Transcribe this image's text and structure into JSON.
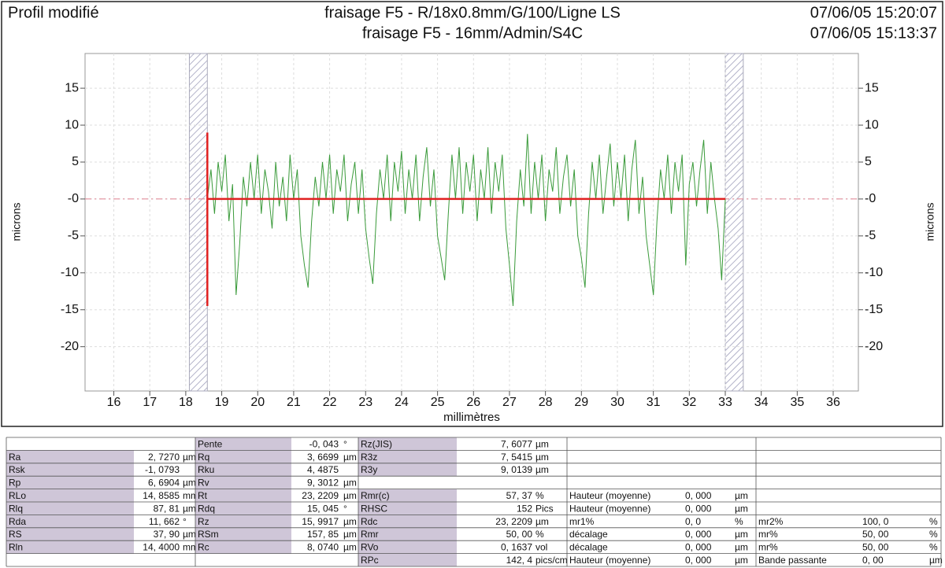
{
  "chart_data": {
    "type": "line",
    "title": "Profil modifié",
    "subtitles": [
      "fraisage F5 - R/18x0.8mm/G/100/Ligne LS",
      "fraisage F5 - 16mm/Admin/S4C"
    ],
    "dates": [
      "07/06/05 15:20:07",
      "07/06/05 15:13:37"
    ],
    "xlabel": "millimètres",
    "ylabel": "microns",
    "xlim": [
      15.2,
      36.7
    ],
    "ylim": [
      -26,
      19.7
    ],
    "xticks": [
      16,
      17,
      18,
      19,
      20,
      21,
      22,
      23,
      24,
      25,
      26,
      27,
      28,
      29,
      30,
      31,
      32,
      33,
      34,
      35,
      36
    ],
    "yticks": [
      15,
      10,
      5,
      {
        "value": 0,
        "label": "-0"
      },
      -5,
      -10,
      -15,
      -20
    ],
    "grid": true,
    "reference_line": 0,
    "mean_line": {
      "x": [
        18.6,
        33.0
      ],
      "y": 0,
      "color": "#e02020"
    },
    "cursor": {
      "x": 18.6,
      "y": [
        -14.5,
        9
      ],
      "color": "#e02020"
    },
    "excluded": [
      [
        18.1,
        18.6
      ],
      [
        33.0,
        33.5
      ]
    ],
    "series": [
      {
        "color": "#3a9a3a",
        "x": [
          18.6,
          18.7,
          18.8,
          18.9,
          19.0,
          19.1,
          19.2,
          19.3,
          19.4,
          19.5,
          19.6,
          19.7,
          19.8,
          19.9,
          20.0,
          20.1,
          20.2,
          20.3,
          20.4,
          20.5,
          20.6,
          20.7,
          20.8,
          20.9,
          21.0,
          21.1,
          21.2,
          21.3,
          21.4,
          21.5,
          21.6,
          21.7,
          21.8,
          21.9,
          22.0,
          22.1,
          22.2,
          22.3,
          22.4,
          22.5,
          22.6,
          22.7,
          22.8,
          22.9,
          23.0,
          23.1,
          23.2,
          23.3,
          23.4,
          23.5,
          23.6,
          23.7,
          23.8,
          23.9,
          24.0,
          24.1,
          24.2,
          24.3,
          24.4,
          24.5,
          24.6,
          24.7,
          24.8,
          24.9,
          25.0,
          25.1,
          25.2,
          25.3,
          25.4,
          25.5,
          25.6,
          25.7,
          25.8,
          25.9,
          26.0,
          26.1,
          26.2,
          26.3,
          26.4,
          26.5,
          26.6,
          26.7,
          26.8,
          26.9,
          27.0,
          27.1,
          27.2,
          27.3,
          27.4,
          27.5,
          27.6,
          27.7,
          27.8,
          27.9,
          28.0,
          28.1,
          28.2,
          28.3,
          28.4,
          28.5,
          28.6,
          28.7,
          28.8,
          28.9,
          29.0,
          29.1,
          29.2,
          29.3,
          29.4,
          29.5,
          29.6,
          29.7,
          29.8,
          29.9,
          30.0,
          30.1,
          30.2,
          30.3,
          30.4,
          30.5,
          30.6,
          30.7,
          30.8,
          30.9,
          31.0,
          31.1,
          31.2,
          31.3,
          31.4,
          31.5,
          31.6,
          31.7,
          31.8,
          31.9,
          32.0,
          32.1,
          32.2,
          32.3,
          32.4,
          32.5,
          32.6,
          32.7,
          32.8,
          32.9,
          33.0
        ],
        "values": [
          0,
          4,
          -2,
          5,
          1,
          6,
          -3,
          2,
          -13,
          -6,
          3,
          -1,
          5,
          0,
          6,
          -2,
          4,
          1,
          -4,
          5,
          -1,
          3,
          -3,
          6,
          0,
          4,
          -5,
          -9,
          -12,
          -3,
          3,
          -1,
          5,
          0,
          6,
          -2,
          4,
          1,
          6,
          -3,
          2,
          5,
          -2,
          4,
          -4,
          -8,
          -11.5,
          -2,
          4,
          0,
          6,
          -3,
          5,
          1,
          6.5,
          -2,
          4,
          0,
          6,
          -3,
          3,
          7,
          -1,
          4,
          -5,
          -8,
          -11,
          -2,
          6,
          0,
          7,
          -2,
          5,
          1,
          6,
          -3,
          4,
          0,
          7,
          -2,
          5,
          1,
          6,
          -4,
          -9,
          -14.5,
          -3,
          4,
          -1,
          8.8,
          -2,
          5,
          0,
          6,
          -3,
          4,
          1,
          7,
          -2,
          3,
          6,
          -1,
          4,
          -5,
          -8,
          -12,
          -2,
          5,
          0,
          6,
          -2,
          3,
          7.5,
          -1,
          5,
          0,
          6,
          -3,
          4,
          8,
          -2,
          3,
          -5,
          -9,
          -13,
          -3,
          4,
          0,
          6,
          -2,
          5,
          1,
          6,
          -9,
          2,
          5,
          -1,
          4,
          8,
          -2,
          5,
          0,
          -4,
          -11,
          0
        ]
      }
    ]
  },
  "table": {
    "rows": [
      [
        null,
        {
          "label": "Pente",
          "value": "-0, 043",
          "unit": "°"
        },
        {
          "label": "Rz(JIS)",
          "value": "7, 6077",
          "unit": "µm"
        },
        null,
        null
      ],
      [
        {
          "label": "Ra",
          "value": "2, 7270",
          "unit": "µm"
        },
        {
          "label": "Rq",
          "value": "3, 6699",
          "unit": "µm"
        },
        {
          "label": "R3z",
          "value": "7, 5415",
          "unit": "µm"
        },
        null,
        null
      ],
      [
        {
          "label": "Rsk",
          "value": "-1, 0793"
        },
        {
          "label": "Rku",
          "value": "4, 4875"
        },
        {
          "label": "R3y",
          "value": "9, 0139",
          "unit": "µm"
        },
        null,
        null
      ],
      [
        {
          "label": "Rp",
          "value": "6, 6904",
          "unit": "µm"
        },
        {
          "label": "Rv",
          "value": "9, 3012",
          "unit": "µm"
        },
        null,
        null,
        null
      ],
      [
        {
          "label": "RLo",
          "value": "14, 8585",
          "unit": "mm"
        },
        {
          "label": "Rt",
          "value": "23, 2209",
          "unit": "µm"
        },
        {
          "label": "Rmr(c)",
          "value": "57, 37",
          "unit": "%"
        },
        {
          "label": "Hauteur (moyenne)",
          "value": "0, 000",
          "unit": "µm"
        },
        null
      ],
      [
        {
          "label": "Rlq",
          "value": "87, 81",
          "unit": "µm"
        },
        {
          "label": "Rdq",
          "value": "15, 045",
          "unit": "°"
        },
        {
          "label": "RHSC",
          "value": "152",
          "unit": "Pics"
        },
        {
          "label": "Hauteur (moyenne)",
          "value": "0, 000",
          "unit": "µm"
        },
        null
      ],
      [
        {
          "label": "Rda",
          "value": "11, 662",
          "unit": "°"
        },
        {
          "label": "Rz",
          "value": "15, 9917",
          "unit": "µm"
        },
        {
          "label": "Rdc",
          "value": "23, 2209",
          "unit": "µm"
        },
        {
          "label": "mr1%",
          "value": "0, 0",
          "unit": "%"
        },
        {
          "label": "mr2%",
          "value": "100, 0",
          "unit": "%"
        }
      ],
      [
        {
          "label": "RS",
          "value": "37, 90",
          "unit": "µm"
        },
        {
          "label": "RSm",
          "value": "157, 85",
          "unit": "µm"
        },
        {
          "label": "Rmr",
          "value": "50, 00",
          "unit": "%"
        },
        {
          "label": "décalage",
          "value": "0, 000",
          "unit": "µm"
        },
        {
          "label": "mr%",
          "value": "50, 00",
          "unit": "%"
        }
      ],
      [
        {
          "label": "Rln",
          "value": "14, 4000",
          "unit": "mm"
        },
        {
          "label": "Rc",
          "value": "8, 0740",
          "unit": "µm"
        },
        {
          "label": "RVo",
          "value": "0, 1637",
          "unit": "vol"
        },
        {
          "label": "décalage",
          "value": "0, 000",
          "unit": "µm"
        },
        {
          "label": "mr%",
          "value": "50, 00",
          "unit": "%"
        }
      ],
      [
        null,
        null,
        {
          "label": "RPc",
          "value": "142, 4",
          "unit": "pics/cm"
        },
        {
          "label": "Hauteur (moyenne)",
          "value": "0, 000",
          "unit": "µm"
        },
        {
          "label": "Bande passante",
          "value": "0, 00",
          "unit": "µm"
        }
      ]
    ]
  }
}
